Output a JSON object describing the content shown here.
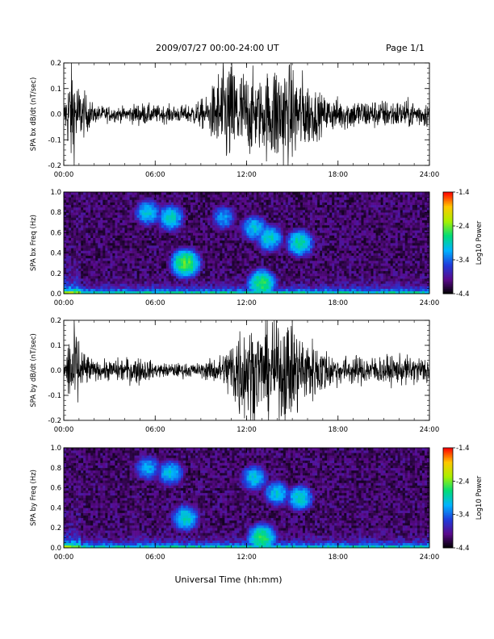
{
  "header": {
    "title": "2009/07/27  00:00-24:00 UT",
    "page": "Page 1/1"
  },
  "colors": {
    "trace": "#000000",
    "colormap": [
      "#000000",
      "#5a0a8c",
      "#1f3cdc",
      "#00b4ff",
      "#00dc78",
      "#aaf000",
      "#ffc800",
      "#ff0000"
    ]
  },
  "chart_data": [
    {
      "type": "line",
      "ylabel": "SPA bx dB/dt (nT/sec)",
      "xlim": [
        0,
        24
      ],
      "ylim": [
        -0.2,
        0.2
      ],
      "xticks": [
        "00:00",
        "06:00",
        "12:00",
        "18:00",
        "24:00"
      ],
      "yticks": [
        "0.2",
        "0.1",
        "0.0",
        "-0.1",
        "-0.2"
      ],
      "envelope": [
        {
          "hour": 0.0,
          "amp": 0.03
        },
        {
          "hour": 0.5,
          "amp": 0.2
        },
        {
          "hour": 1.0,
          "amp": 0.1
        },
        {
          "hour": 2.0,
          "amp": 0.03
        },
        {
          "hour": 4.0,
          "amp": 0.025
        },
        {
          "hour": 5.0,
          "amp": 0.04
        },
        {
          "hour": 6.0,
          "amp": 0.03
        },
        {
          "hour": 8.0,
          "amp": 0.03
        },
        {
          "hour": 9.5,
          "amp": 0.06
        },
        {
          "hour": 10.5,
          "amp": 0.2
        },
        {
          "hour": 12.0,
          "amp": 0.15
        },
        {
          "hour": 13.0,
          "amp": 0.12
        },
        {
          "hour": 14.0,
          "amp": 0.2
        },
        {
          "hour": 15.5,
          "amp": 0.15
        },
        {
          "hour": 17.0,
          "amp": 0.06
        },
        {
          "hour": 20.0,
          "amp": 0.05
        },
        {
          "hour": 24.0,
          "amp": 0.045
        }
      ]
    },
    {
      "type": "heatmap",
      "ylabel": "SPA bx Freq (Hz)",
      "xlim": [
        0,
        24
      ],
      "ylim": [
        0,
        1.0
      ],
      "xticks": [
        "00:00",
        "06:00",
        "12:00",
        "18:00",
        "24:00"
      ],
      "yticks": [
        "1.0",
        "0.8",
        "0.6",
        "0.4",
        "0.2",
        "0.0"
      ],
      "colorbar": {
        "label": "Log10 Power",
        "ticks": [
          "-1.4",
          "-2.4",
          "-3.4",
          "-4.4"
        ],
        "range": [
          -4.4,
          -1.4
        ]
      },
      "features": [
        {
          "hour": 5.5,
          "freq": 0.8,
          "power": -3.0
        },
        {
          "hour": 7.0,
          "freq": 0.75,
          "power": -2.9
        },
        {
          "hour": 8.0,
          "freq": 0.3,
          "power": -2.5
        },
        {
          "hour": 10.5,
          "freq": 0.75,
          "power": -3.2
        },
        {
          "hour": 12.5,
          "freq": 0.65,
          "power": -3.0
        },
        {
          "hour": 13.5,
          "freq": 0.55,
          "power": -2.9
        },
        {
          "hour": 15.5,
          "freq": 0.5,
          "power": -2.8
        },
        {
          "hour": 13.0,
          "freq": 0.1,
          "power": -2.6
        }
      ]
    },
    {
      "type": "line",
      "ylabel": "SPA by dB/dt (nT/sec)",
      "xlim": [
        0,
        24
      ],
      "ylim": [
        -0.2,
        0.2
      ],
      "xticks": [
        "00:00",
        "06:00",
        "12:00",
        "18:00",
        "24:00"
      ],
      "yticks": [
        "0.2",
        "0.1",
        "0.0",
        "-0.1",
        "-0.2"
      ],
      "envelope": [
        {
          "hour": 0.0,
          "amp": 0.02
        },
        {
          "hour": 0.6,
          "amp": 0.2
        },
        {
          "hour": 1.2,
          "amp": 0.08
        },
        {
          "hour": 2.0,
          "amp": 0.03
        },
        {
          "hour": 5.0,
          "amp": 0.05
        },
        {
          "hour": 6.0,
          "amp": 0.025
        },
        {
          "hour": 9.0,
          "amp": 0.025
        },
        {
          "hour": 10.5,
          "amp": 0.06
        },
        {
          "hour": 11.5,
          "amp": 0.18
        },
        {
          "hour": 13.0,
          "amp": 0.15
        },
        {
          "hour": 14.5,
          "amp": 0.2
        },
        {
          "hour": 16.0,
          "amp": 0.12
        },
        {
          "hour": 18.0,
          "amp": 0.05
        },
        {
          "hour": 24.0,
          "amp": 0.05
        }
      ]
    },
    {
      "type": "heatmap",
      "ylabel": "SPA by Freq (Hz)",
      "xlim": [
        0,
        24
      ],
      "ylim": [
        0,
        1.0
      ],
      "xticks": [
        "00:00",
        "06:00",
        "12:00",
        "18:00",
        "24:00"
      ],
      "yticks": [
        "1.0",
        "0.8",
        "0.6",
        "0.4",
        "0.2",
        "0.0"
      ],
      "colorbar": {
        "label": "Log10 Power",
        "ticks": [
          "-1.4",
          "-2.4",
          "-3.4",
          "-4.4"
        ],
        "range": [
          -4.4,
          -1.4
        ]
      },
      "features": [
        {
          "hour": 5.5,
          "freq": 0.8,
          "power": -3.1
        },
        {
          "hour": 7.0,
          "freq": 0.75,
          "power": -3.0
        },
        {
          "hour": 8.0,
          "freq": 0.3,
          "power": -2.9
        },
        {
          "hour": 12.5,
          "freq": 0.7,
          "power": -3.0
        },
        {
          "hour": 14.0,
          "freq": 0.55,
          "power": -3.0
        },
        {
          "hour": 15.5,
          "freq": 0.5,
          "power": -2.9
        },
        {
          "hour": 13.0,
          "freq": 0.1,
          "power": -2.6
        }
      ]
    }
  ],
  "xlabel": "Universal Time (hh:mm)"
}
